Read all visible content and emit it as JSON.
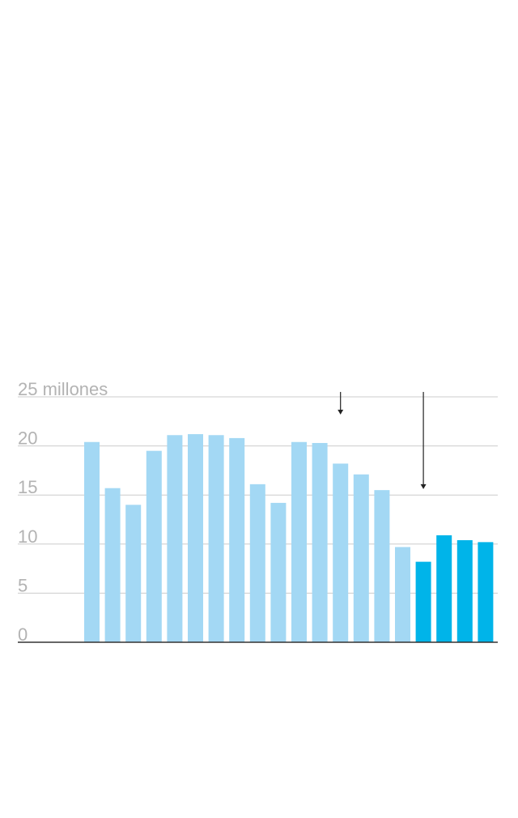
{
  "chart_data": {
    "type": "bar",
    "title": "",
    "xlabel": "",
    "ylabel": "",
    "ylim": [
      0,
      25
    ],
    "grid": true,
    "y_ticks": [
      {
        "value": 0,
        "label": "0"
      },
      {
        "value": 5,
        "label": "5"
      },
      {
        "value": 10,
        "label": "10"
      },
      {
        "value": 15,
        "label": "15"
      },
      {
        "value": 20,
        "label": "20"
      },
      {
        "value": 25,
        "label": "25 millones"
      }
    ],
    "values": [
      20.4,
      15.7,
      14.0,
      19.5,
      21.1,
      21.2,
      21.1,
      20.8,
      16.1,
      14.2,
      20.4,
      20.3,
      18.2,
      17.1,
      15.5,
      9.7,
      8.2,
      10.9,
      10.4,
      10.2
    ],
    "highlight_from_index": 16,
    "arrows": [
      {
        "at_index": 12,
        "top_value": 25.5,
        "tip_value": 23.2
      },
      {
        "at_index": 16,
        "top_value": 25.5,
        "tip_value": 15.6
      }
    ]
  },
  "colors": {
    "bar": "#a3d8f4",
    "bar_highlight": "#00b4e9",
    "grid": "#cccccc",
    "baseline": "#333333",
    "tick_text": "#b3b3b3",
    "arrow": "#222222"
  }
}
